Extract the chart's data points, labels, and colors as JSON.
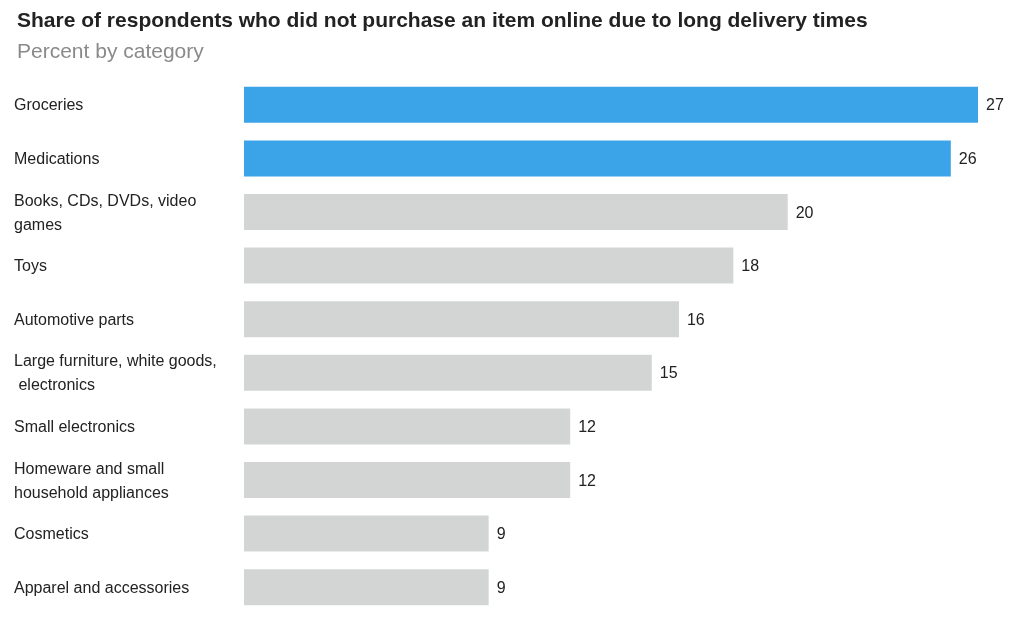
{
  "chart_data": {
    "type": "bar",
    "orientation": "horizontal",
    "title": "Share of respondents who did not purchase an item online due to long delivery times",
    "subtitle": "Percent by category",
    "categories": [
      "Groceries",
      "Medications",
      "Books, CDs, DVDs, video games",
      "Toys",
      "Automotive parts",
      "Large furniture, white goods, electronics",
      "Small electronics",
      "Homeware and small household appliances",
      "Cosmetics",
      "Apparel and accessories"
    ],
    "values": [
      27,
      26,
      20,
      18,
      16,
      15,
      12,
      12,
      9,
      9
    ],
    "colors": [
      "#3ba3e8",
      "#3ba3e8",
      "#d3d5d5",
      "#d3d5d5",
      "#d3d5d5",
      "#d3d5d5",
      "#d3d5d5",
      "#d3d5d5",
      "#d3d5d5",
      "#d3d5d5"
    ],
    "data_labels": true
  }
}
